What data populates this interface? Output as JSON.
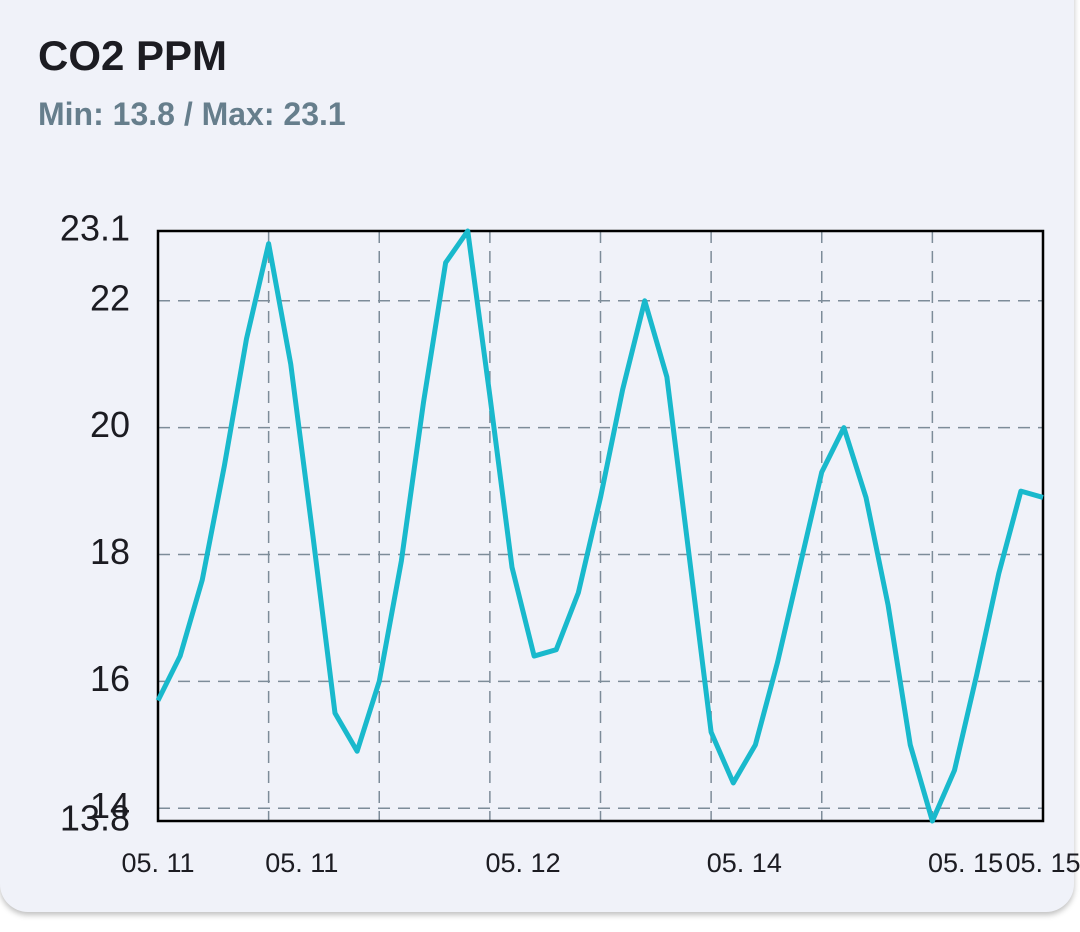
{
  "chart_data": {
    "type": "line",
    "title": "CO2 PPM",
    "subtitle": "Min: 13.8 / Max: 23.1",
    "x": [
      0,
      0.2,
      0.4,
      0.6,
      0.8,
      1.0,
      1.2,
      1.4,
      1.6,
      1.8,
      2.0,
      2.2,
      2.4,
      2.6,
      2.8,
      3.0,
      3.2,
      3.4,
      3.6,
      3.8,
      4.0,
      4.2,
      4.4,
      4.6,
      4.8,
      5.0,
      5.2,
      5.4,
      5.6,
      5.8,
      6.0,
      6.2,
      6.4,
      6.6,
      6.8,
      7.0,
      7.2,
      7.4,
      7.6,
      7.8,
      8.0
    ],
    "series": [
      {
        "color": "#19b9cc",
        "values": [
          15.7,
          16.4,
          17.6,
          19.4,
          21.4,
          22.9,
          21.0,
          18.3,
          15.5,
          14.9,
          16.0,
          17.9,
          20.4,
          22.6,
          23.1,
          20.5,
          17.8,
          16.4,
          16.5,
          17.4,
          18.9,
          20.6,
          22.0,
          20.8,
          18.0,
          15.2,
          14.4,
          15.0,
          16.3,
          17.8,
          19.3,
          20.0,
          18.9,
          17.2,
          15.0,
          13.8,
          14.6,
          16.1,
          17.7,
          19.0,
          18.9
        ]
      }
    ],
    "xlim": [
      0,
      8
    ],
    "xticks": [
      {
        "value": 0,
        "label": "05. 11"
      },
      {
        "value": 1.3,
        "label": "05. 11"
      },
      {
        "value": 3.3,
        "label": "05. 12"
      },
      {
        "value": 5.3,
        "label": "05. 14"
      },
      {
        "value": 7.3,
        "label": "05. 15"
      },
      {
        "value": 8,
        "label": "05. 15"
      }
    ],
    "x_grid_lines": [
      1,
      2,
      3,
      4,
      5,
      6,
      7
    ],
    "ylim": [
      13.8,
      23.1
    ],
    "yticks": [
      13.8,
      14,
      16,
      18,
      20,
      22,
      23.1
    ],
    "grid": true
  }
}
